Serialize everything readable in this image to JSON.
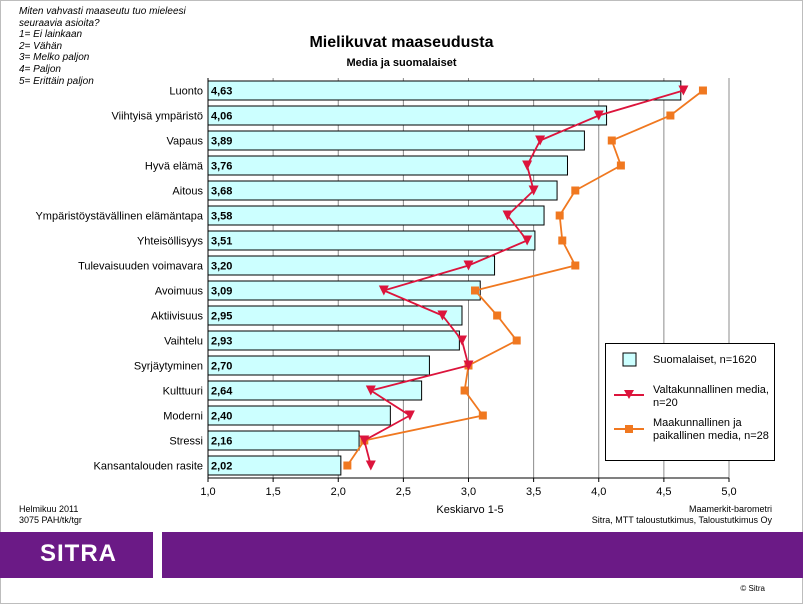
{
  "question": {
    "text": "Miten vahvasti maaseutu tuo mieleesi\nseuraavia asioita?",
    "scale": [
      "1= Ei lainkaan",
      "2= Vähän",
      "3= Melko paljon",
      "4= Paljon",
      "5= Erittäin paljon"
    ]
  },
  "footer": {
    "date": "Helmikuu 2011",
    "code": "3075 PAH/tk/tgr",
    "source_line1": "Maamerkit-barometri",
    "source_line2": "Sitra, MTT taloustutkimus, Taloustutkimus Oy"
  },
  "logo": {
    "text": "SITRA"
  },
  "copyright": "© Sitra",
  "colors": {
    "bar_fill": "#ccffff",
    "series2": "#dc143c",
    "series3": "#f07820",
    "brand": "#6b1a86"
  },
  "chart_data": {
    "type": "bar",
    "orientation": "horizontal",
    "title": "Mielikuvat maaseudusta",
    "subtitle": "Media ja suomalaiset",
    "xlabel": "Keskiarvo 1-5",
    "xlim": [
      1.0,
      5.0
    ],
    "xticks": [
      "1,0",
      "1,5",
      "2,0",
      "2,5",
      "3,0",
      "3,5",
      "4,0",
      "4,5",
      "5,0"
    ],
    "grid": "vertical",
    "legend_position": "bottom-right",
    "categories": [
      "Luonto",
      "Viihtyisä ympäristö",
      "Vapaus",
      "Hyvä elämä",
      "Aitous",
      "Ympäristöystävällinen elämäntapa",
      "Yhteisöllisyys",
      "Tulevaisuuden voimavara",
      "Avoimuus",
      "Aktiivisuus",
      "Vaihtelu",
      "Syrjäytyminen",
      "Kulttuuri",
      "Moderni",
      "Stressi",
      "Kansantalouden rasite"
    ],
    "series": [
      {
        "name": "Suomalaiset, n=1620",
        "kind": "bar",
        "values": [
          4.63,
          4.06,
          3.89,
          3.76,
          3.68,
          3.58,
          3.51,
          3.2,
          3.09,
          2.95,
          2.93,
          2.7,
          2.64,
          2.4,
          2.16,
          2.02
        ],
        "labels": [
          "4,63",
          "4,06",
          "3,89",
          "3,76",
          "3,68",
          "3,58",
          "3,51",
          "3,20",
          "3,09",
          "2,95",
          "2,93",
          "2,70",
          "2,64",
          "2,40",
          "2,16",
          "2,02"
        ]
      },
      {
        "name": "Valtakunnallinen media, n=20",
        "kind": "line",
        "marker": "triangle-down",
        "values": [
          4.65,
          4.0,
          3.55,
          3.45,
          3.5,
          3.3,
          3.45,
          3.0,
          2.35,
          2.8,
          2.95,
          3.0,
          2.25,
          2.55,
          2.2,
          2.25
        ]
      },
      {
        "name": "Maakunnallinen ja paikallinen media, n=28",
        "kind": "line",
        "marker": "square",
        "values": [
          4.8,
          4.55,
          4.1,
          4.17,
          3.82,
          3.7,
          3.72,
          3.82,
          3.05,
          3.22,
          3.37,
          3.0,
          2.97,
          3.11,
          2.2,
          2.07
        ]
      }
    ]
  }
}
